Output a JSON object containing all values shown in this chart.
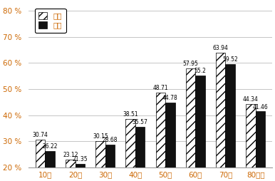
{
  "categories": [
    "10代",
    "20代",
    "30代",
    "40代",
    "50代",
    "60代",
    "70代",
    "80以上"
  ],
  "prev": [
    30.74,
    23.12,
    30.15,
    38.51,
    48.71,
    57.95,
    63.94,
    44.34
  ],
  "curr": [
    26.22,
    21.35,
    28.68,
    35.57,
    44.78,
    55.2,
    59.52,
    41.46
  ],
  "ylim": [
    20,
    83
  ],
  "yticks": [
    20,
    30,
    40,
    50,
    60,
    70,
    80
  ],
  "legend_prev": "前回",
  "legend_curr": "今回",
  "bg_color": "#ffffff",
  "plot_bg": "#ffffff",
  "bar_width": 0.32,
  "hatch_prev": "///",
  "color_prev": "white",
  "color_curr": "#111111",
  "label_fontsize": 5.5,
  "tick_fontsize": 7.5,
  "legend_fontsize": 7.5,
  "tick_color": "#cc6600",
  "grid_color": "#bbbbbb"
}
